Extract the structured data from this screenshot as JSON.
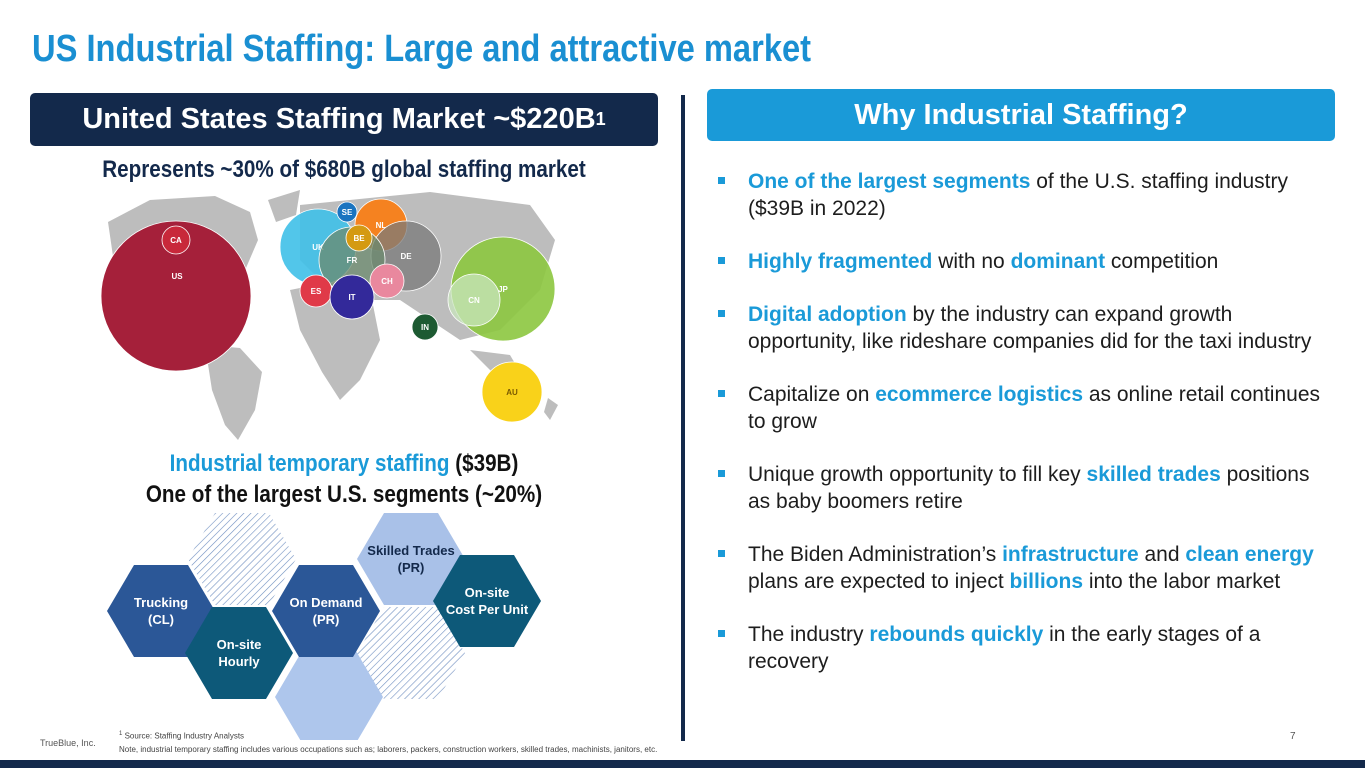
{
  "title": "US Industrial Staffing: Large and attractive market",
  "left_panel": {
    "heading": "United States Staffing Market ~$220B",
    "heading_footnote": "1",
    "subtitle": "Represents ~30% of $680B global staffing market",
    "map_bubbles": [
      {
        "label": "US",
        "color": "#a5203a"
      },
      {
        "label": "CA",
        "color": "#c8283a"
      },
      {
        "label": "UK",
        "color": "#3fc0e8"
      },
      {
        "label": "NL",
        "color": "#f58220"
      },
      {
        "label": "DE",
        "color": "#7a7a7a"
      },
      {
        "label": "FR",
        "color": "#6b8a6e"
      },
      {
        "label": "SE",
        "color": "#1a74c0"
      },
      {
        "label": "BE",
        "color": "#d49a12"
      },
      {
        "label": "CH",
        "color": "#e9889e"
      },
      {
        "label": "ES",
        "color": "#e03a48"
      },
      {
        "label": "IT",
        "color": "#33299a"
      },
      {
        "label": "JP",
        "color": "#8cc63f"
      },
      {
        "label": "CN",
        "color": "#c9e6bd"
      },
      {
        "label": "IN",
        "color": "#1d5a32"
      },
      {
        "label": "AU",
        "color": "#f9d21a"
      }
    ],
    "segment_line1": [
      {
        "text": "Industrial temporary staffing",
        "style": "accent"
      },
      {
        "text": " ($39B)",
        "style": "plain"
      }
    ],
    "segment_line2": "One of the largest U.S. segments (~20%)",
    "hexagons": [
      {
        "label_lines": [
          "Trucking",
          "(CL)"
        ],
        "color": "#2b5797"
      },
      {
        "label_lines": [
          "On-site",
          "Hourly"
        ],
        "color": "#0d5979"
      },
      {
        "label_lines": [
          "On Demand",
          "(PR)"
        ],
        "color": "#2b5797"
      },
      {
        "label_lines": [
          "Skilled Trades",
          "(PR)"
        ],
        "color": "#a9c1e8"
      },
      {
        "label_lines": [
          "On-site",
          "Cost Per Unit"
        ],
        "color": "#0d5979"
      }
    ]
  },
  "right_panel": {
    "heading": "Why Industrial Staffing?",
    "bullets": [
      [
        {
          "text": "One of the largest segments",
          "style": "accent"
        },
        {
          "text": " of the U.S. staffing industry ($39B in 2022)",
          "style": "plain"
        }
      ],
      [
        {
          "text": "Highly fragmented",
          "style": "accent"
        },
        {
          "text": " with no ",
          "style": "plain"
        },
        {
          "text": "dominant",
          "style": "accent"
        },
        {
          "text": " competition",
          "style": "plain"
        }
      ],
      [
        {
          "text": "Digital adoption",
          "style": "accent"
        },
        {
          "text": " by the industry can expand growth opportunity, like rideshare companies did for the taxi industry",
          "style": "plain"
        }
      ],
      [
        {
          "text": "Capitalize on ",
          "style": "plain"
        },
        {
          "text": "ecommerce logistics",
          "style": "accent"
        },
        {
          "text": " as online retail continues to grow",
          "style": "plain"
        }
      ],
      [
        {
          "text": "Unique growth opportunity to fill key ",
          "style": "plain"
        },
        {
          "text": "skilled trades",
          "style": "accent"
        },
        {
          "text": " positions as baby boomers retire",
          "style": "plain"
        }
      ],
      [
        {
          "text": "The Biden Administration’s ",
          "style": "plain"
        },
        {
          "text": "infrastructure",
          "style": "accent"
        },
        {
          "text": " and ",
          "style": "plain"
        },
        {
          "text": "clean energy",
          "style": "accent"
        },
        {
          "text": " plans are expected to inject ",
          "style": "plain"
        },
        {
          "text": "billions",
          "style": "accent"
        },
        {
          "text": " into the labor market",
          "style": "plain"
        }
      ],
      [
        {
          "text": "The industry ",
          "style": "plain"
        },
        {
          "text": "rebounds quickly",
          "style": "accent"
        },
        {
          "text": " in the early stages of a recovery",
          "style": "plain"
        }
      ]
    ]
  },
  "footer": {
    "company": "TrueBlue, Inc.",
    "footnote_marker": "1",
    "source": "Source: Staffing Industry Analysts",
    "note": "Note, industrial temporary staffing includes various occupations such as; laborers, packers, construction workers, skilled trades, machinists, janitors, etc.",
    "page_number": "7"
  }
}
